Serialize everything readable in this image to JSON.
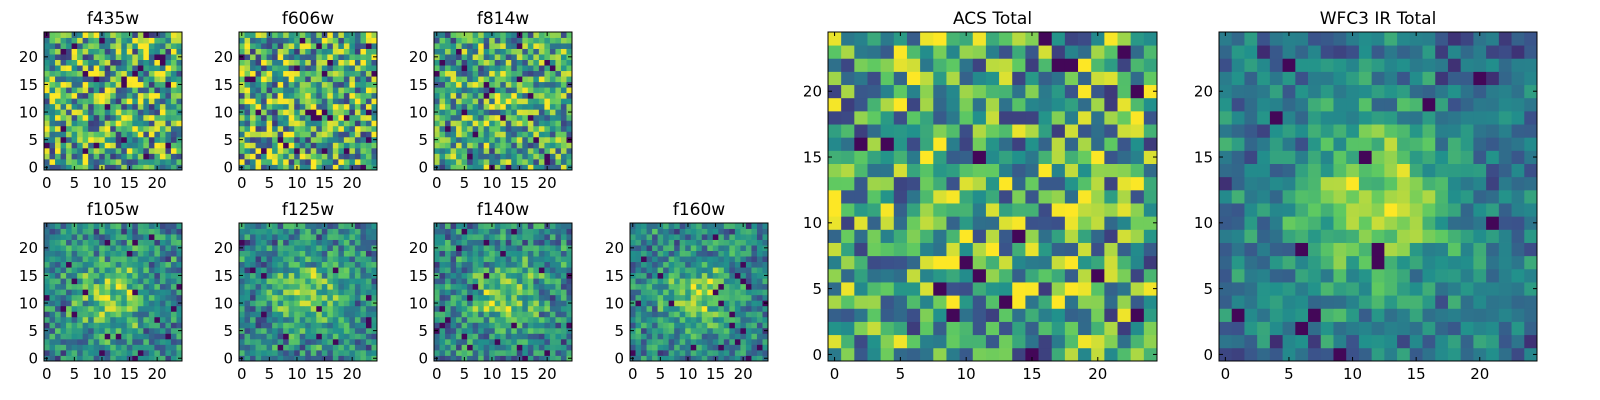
{
  "figure": {
    "colormap": [
      "#440154",
      "#3b528b",
      "#21918c",
      "#5ec962",
      "#fde725"
    ]
  },
  "chart_data": [
    {
      "type": "heatmap",
      "title": "f435w",
      "size": 25,
      "seed": 11,
      "peak": 0.0,
      "xticks": [
        0,
        5,
        10,
        15,
        20
      ],
      "yticks": [
        0,
        5,
        10,
        15,
        20
      ],
      "xlim": [
        -0.5,
        24.5
      ],
      "ylim": [
        -0.5,
        24.5
      ]
    },
    {
      "type": "heatmap",
      "title": "f606w",
      "size": 25,
      "seed": 23,
      "peak": 0.0,
      "xticks": [
        0,
        5,
        10,
        15,
        20
      ],
      "yticks": [
        0,
        5,
        10,
        15,
        20
      ],
      "xlim": [
        -0.5,
        24.5
      ],
      "ylim": [
        -0.5,
        24.5
      ]
    },
    {
      "type": "heatmap",
      "title": "f814w",
      "size": 25,
      "seed": 37,
      "peak": 0.1,
      "xticks": [
        0,
        5,
        10,
        15,
        20
      ],
      "yticks": [
        0,
        5,
        10,
        15,
        20
      ],
      "xlim": [
        -0.5,
        24.5
      ],
      "ylim": [
        -0.5,
        24.5
      ]
    },
    {
      "type": "heatmap",
      "title": "f105w",
      "size": 25,
      "seed": 41,
      "peak": 0.45,
      "xticks": [
        0,
        5,
        10,
        15,
        20
      ],
      "yticks": [
        0,
        5,
        10,
        15,
        20
      ],
      "xlim": [
        -0.5,
        24.5
      ],
      "ylim": [
        -0.5,
        24.5
      ]
    },
    {
      "type": "heatmap",
      "title": "f125w",
      "size": 25,
      "seed": 53,
      "peak": 0.45,
      "xticks": [
        0,
        5,
        10,
        15,
        20
      ],
      "yticks": [
        0,
        5,
        10,
        15,
        20
      ],
      "xlim": [
        -0.5,
        24.5
      ],
      "ylim": [
        -0.5,
        24.5
      ]
    },
    {
      "type": "heatmap",
      "title": "f140w",
      "size": 25,
      "seed": 67,
      "peak": 0.45,
      "xticks": [
        0,
        5,
        10,
        15,
        20
      ],
      "yticks": [
        0,
        5,
        10,
        15,
        20
      ],
      "xlim": [
        -0.5,
        24.5
      ],
      "ylim": [
        -0.5,
        24.5
      ]
    },
    {
      "type": "heatmap",
      "title": "f160w",
      "size": 25,
      "seed": 71,
      "peak": 0.5,
      "xticks": [
        0,
        5,
        10,
        15,
        20
      ],
      "yticks": [
        0,
        5,
        10,
        15,
        20
      ],
      "xlim": [
        -0.5,
        24.5
      ],
      "ylim": [
        -0.5,
        24.5
      ]
    },
    {
      "type": "heatmap",
      "title": "ACS Total",
      "size": 25,
      "seed": 83,
      "peak": 0.05,
      "xticks": [
        0,
        5,
        10,
        15,
        20
      ],
      "yticks": [
        0,
        5,
        10,
        15,
        20
      ],
      "xlim": [
        -0.5,
        24.5
      ],
      "ylim": [
        -0.5,
        24.5
      ]
    },
    {
      "type": "heatmap",
      "title": "WFC3 IR Total",
      "size": 25,
      "seed": 97,
      "peak": 0.65,
      "xticks": [
        0,
        5,
        10,
        15,
        20
      ],
      "yticks": [
        0,
        5,
        10,
        15,
        20
      ],
      "xlim": [
        -0.5,
        24.5
      ],
      "ylim": [
        -0.5,
        24.5
      ]
    }
  ]
}
